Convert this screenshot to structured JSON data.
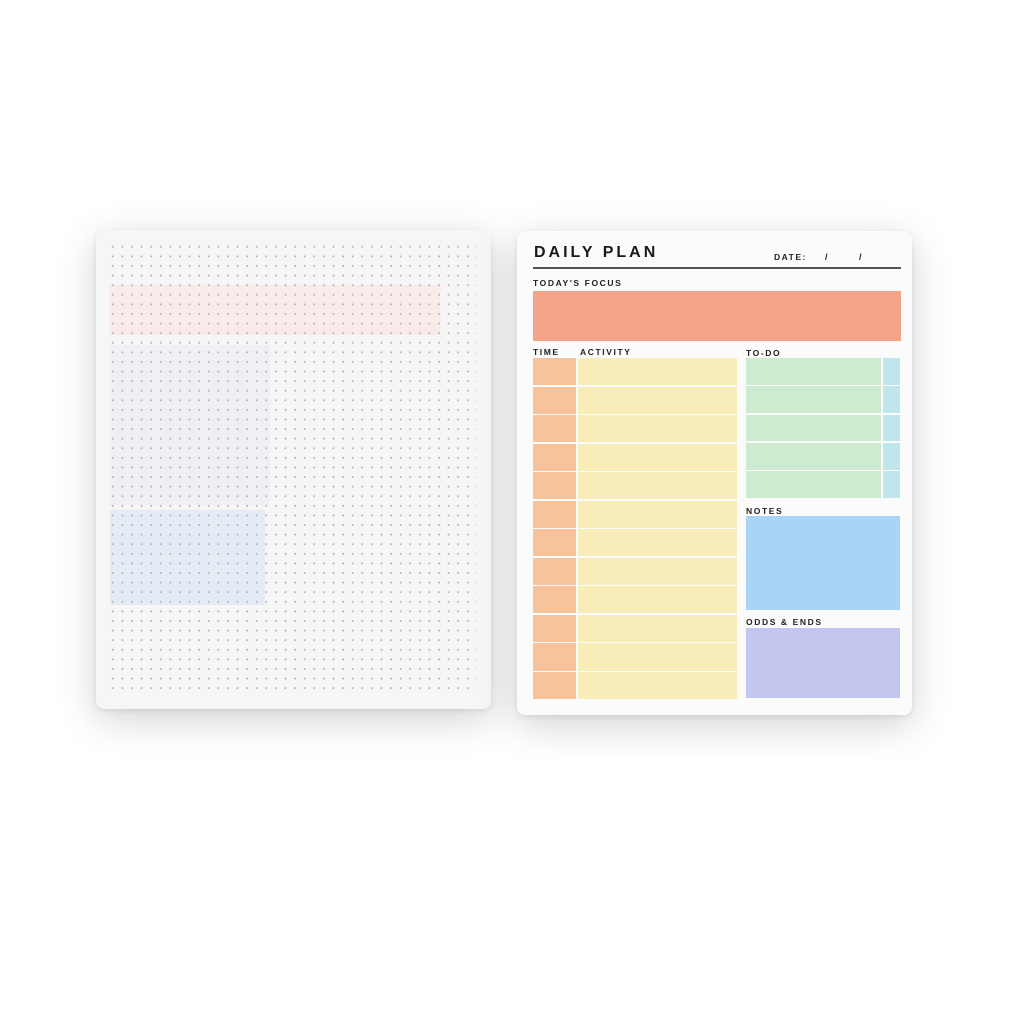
{
  "planner": {
    "title": "DAILY PLAN",
    "date_label": "DATE:",
    "date_separator": "/",
    "sections": {
      "focus": "TODAY'S FOCUS",
      "time": "TIME",
      "activity": "ACTIVITY",
      "todo": "TO-DO",
      "notes": "NOTES",
      "odds_ends": "ODDS & ENDS"
    },
    "time_slots": 12,
    "todo_items": 5
  },
  "colors": {
    "focus": "#f4a48a",
    "time": "#f8c39a",
    "activity": "#f8ecb8",
    "todo": "#cdebd0",
    "todo_check": "#bfe6ea",
    "notes": "#a9d4f5",
    "odds_ends": "#c3c6ee",
    "dot_page": "#f7f6f6"
  }
}
